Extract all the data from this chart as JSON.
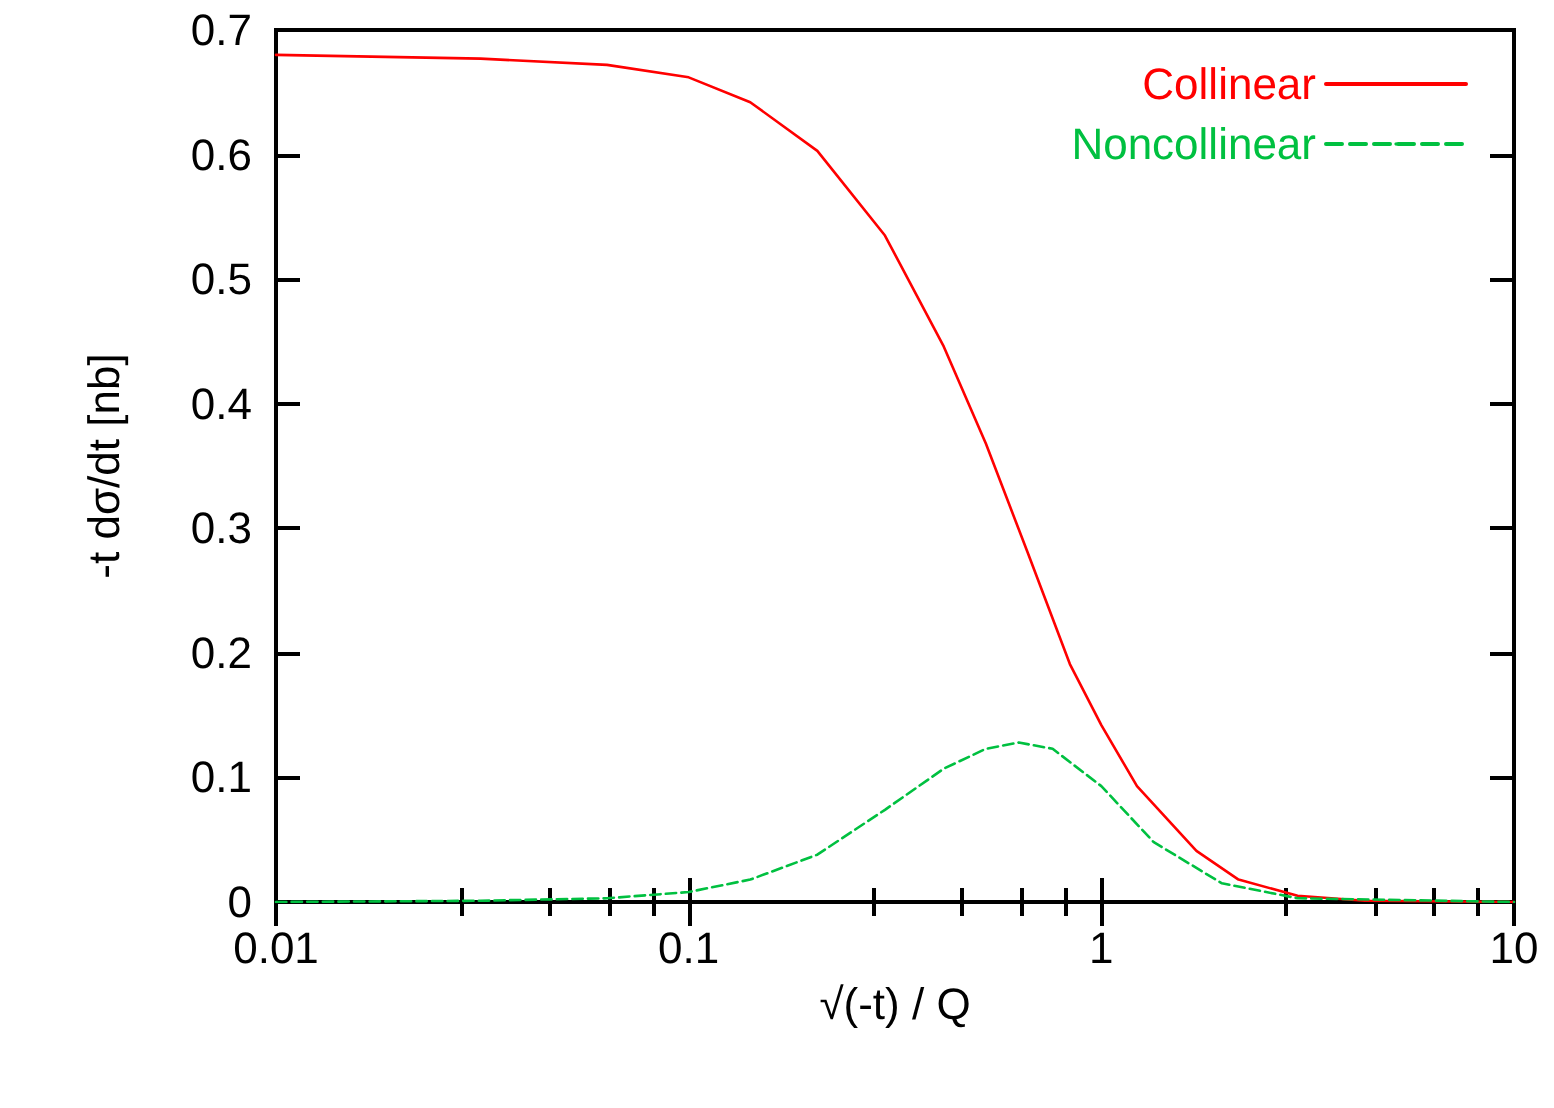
{
  "chart_data": {
    "type": "line",
    "xlabel": "√(-t) / Q",
    "ylabel": "-t dσ/dt [nb]",
    "log": "x",
    "xlim": [
      0.01,
      10
    ],
    "xticks": [
      0.01,
      0.1,
      1,
      10
    ],
    "ylim": [
      0,
      0.7
    ],
    "yticks": [
      0,
      0.1,
      0.2,
      0.3,
      0.4,
      0.5,
      0.6,
      0.7
    ],
    "grid": false,
    "legend": "top right",
    "marker": "none",
    "x": [
      0.01,
      0.0313,
      0.0634,
      0.1,
      0.141,
      0.205,
      0.299,
      0.415,
      0.525,
      0.631,
      0.664,
      0.762,
      0.839,
      1,
      1.22,
      1.34,
      1.7,
      1.96,
      2.15,
      2.99,
      4.35,
      10
    ],
    "series": [
      {
        "name": "Collinear",
        "color": "#ff0000",
        "line_style": "solid",
        "values": [
          0.68,
          0.677,
          0.672,
          0.662,
          0.642,
          0.603,
          0.535,
          0.446,
          0.368,
          null,
          0.28,
          null,
          0.191,
          0.142,
          0.093,
          null,
          0.041,
          null,
          0.018,
          0.005,
          0.001,
          0
        ]
      },
      {
        "name": "Noncollinear",
        "color": "#00c040",
        "line_style": "dashed",
        "values": [
          0,
          0.001,
          0.003,
          0.008,
          0.018,
          0.038,
          0.074,
          0.107,
          0.123,
          0.128,
          null,
          0.123,
          null,
          0.093,
          null,
          0.048,
          null,
          0.015,
          null,
          0.003,
          null,
          0
        ]
      }
    ]
  }
}
